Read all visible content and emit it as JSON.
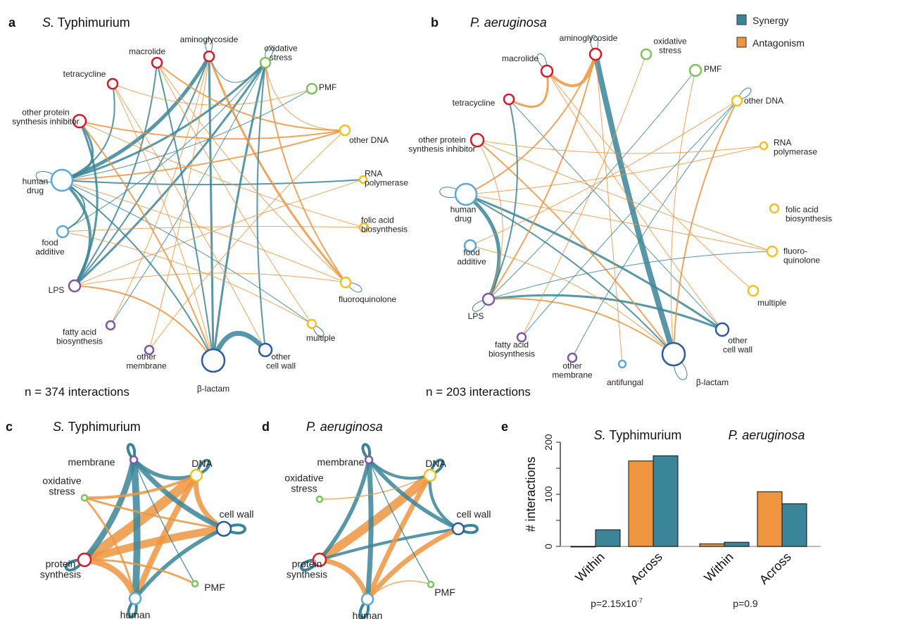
{
  "colors": {
    "synergy": "#3a8598",
    "antagonism": "#ef9540",
    "protein_synthesis": "#d7192a",
    "oxidative": "#7cc35a",
    "dna": "#f2c022",
    "human_food": "#5aa7e0",
    "cell_wall": "#2b5aa8",
    "membrane": "#7e57a8"
  },
  "legend": {
    "synergy": "Synergy",
    "antagonism": "Antagonism"
  },
  "panel_a": {
    "letter": "a",
    "title_italic": "S.",
    "title_rest": " Typhimurium",
    "count": "n = 374 interactions",
    "nodes": [
      {
        "id": "aminoglycoside",
        "label": [
          "aminoglycoside"
        ],
        "cls": "protein_synthesis"
      },
      {
        "id": "macrolide",
        "label": [
          "macrolide"
        ],
        "cls": "protein_synthesis"
      },
      {
        "id": "tetracycline",
        "label": [
          "tetracycline"
        ],
        "cls": "protein_synthesis"
      },
      {
        "id": "other_psi",
        "label": [
          "other protein",
          "synthesis inhibitor"
        ],
        "cls": "protein_synthesis"
      },
      {
        "id": "oxidative",
        "label": [
          "oxidative",
          "stress"
        ],
        "cls": "oxidative"
      },
      {
        "id": "pmf",
        "label": [
          "PMF"
        ],
        "cls": "oxidative"
      },
      {
        "id": "other_dna",
        "label": [
          "other DNA"
        ],
        "cls": "dna"
      },
      {
        "id": "rna",
        "label": [
          "RNA",
          "polymerase"
        ],
        "cls": "dna"
      },
      {
        "id": "folic",
        "label": [
          "folic acid",
          "biosynthesis"
        ],
        "cls": "dna"
      },
      {
        "id": "fluoro",
        "label": [
          "fluoroquinolone"
        ],
        "cls": "dna"
      },
      {
        "id": "multiple",
        "label": [
          "multiple"
        ],
        "cls": "dna"
      },
      {
        "id": "other_cw",
        "label": [
          "other",
          "cell wall"
        ],
        "cls": "cell_wall"
      },
      {
        "id": "blactam",
        "label": [
          "β-lactam"
        ],
        "cls": "cell_wall"
      },
      {
        "id": "other_mem",
        "label": [
          "other",
          "membrane"
        ],
        "cls": "membrane"
      },
      {
        "id": "fatty",
        "label": [
          "fatty acid",
          "biosynthesis"
        ],
        "cls": "membrane"
      },
      {
        "id": "lps",
        "label": [
          "LPS"
        ],
        "cls": "membrane"
      },
      {
        "id": "food",
        "label": [
          "food",
          "additive"
        ],
        "cls": "human_food"
      },
      {
        "id": "human",
        "label": [
          "human",
          "drug"
        ],
        "cls": "human_food"
      }
    ],
    "edges": [
      [
        "human",
        "aminoglycoside",
        "s",
        5
      ],
      [
        "human",
        "oxidative",
        "s",
        3
      ],
      [
        "human",
        "tetracycline",
        "s",
        2
      ],
      [
        "human",
        "other_psi",
        "s",
        3
      ],
      [
        "human",
        "lps",
        "s",
        4
      ],
      [
        "human",
        "food",
        "s",
        2
      ],
      [
        "human",
        "rna",
        "s",
        2
      ],
      [
        "lps",
        "aminoglycoside",
        "s",
        2
      ],
      [
        "lps",
        "oxidative",
        "s",
        3
      ],
      [
        "lps",
        "macrolide",
        "s",
        2
      ],
      [
        "lps",
        "blactam",
        "a",
        2
      ],
      [
        "blactam",
        "other_cw",
        "s",
        7
      ],
      [
        "blactam",
        "aminoglycoside",
        "s",
        3
      ],
      [
        "blactam",
        "oxidative",
        "s",
        3
      ],
      [
        "blactam",
        "macrolide",
        "s",
        2
      ],
      [
        "blactam",
        "human",
        "s",
        2
      ],
      [
        "oxidative",
        "fluoro",
        "a",
        2
      ],
      [
        "oxidative",
        "other_dna",
        "a",
        1
      ],
      [
        "aminoglycoside",
        "fluoro",
        "a",
        3
      ],
      [
        "macrolide",
        "other_dna",
        "a",
        2
      ],
      [
        "other_psi",
        "other_dna",
        "a",
        2
      ],
      [
        "tetracycline",
        "pmf",
        "a",
        1
      ],
      [
        "human",
        "other_dna",
        "a",
        2
      ],
      [
        "human",
        "fluoro",
        "a",
        1
      ],
      [
        "food",
        "folic",
        "a",
        1
      ],
      [
        "food",
        "multiple",
        "a",
        1
      ],
      [
        "fatty",
        "oxidative",
        "s",
        1
      ],
      [
        "other_mem",
        "aminoglycoside",
        "a",
        1
      ],
      [
        "other_mem",
        "other_dna",
        "a",
        1
      ],
      [
        "multiple",
        "macrolide",
        "a",
        1
      ],
      [
        "other_cw",
        "oxidative",
        "s",
        2
      ],
      [
        "other_cw",
        "tetracycline",
        "a",
        1
      ],
      [
        "fluoro",
        "lps",
        "a",
        1
      ],
      [
        "rna",
        "lps",
        "a",
        1
      ],
      [
        "pmf",
        "human",
        "s",
        1
      ],
      [
        "folic",
        "other_psi",
        "a",
        1
      ],
      [
        "aminoglycoside",
        "oxidative",
        "s",
        1
      ],
      [
        "multiple",
        "human",
        "s",
        1
      ],
      [
        "blactam",
        "other_psi",
        "a",
        2
      ],
      [
        "fatty",
        "aminoglycoside",
        "a",
        1
      ],
      [
        "lps",
        "other_psi",
        "s",
        3
      ],
      [
        "food",
        "oxidative",
        "s",
        1
      ],
      [
        "macrolide",
        "fluoro",
        "a",
        1
      ],
      [
        "tetracycline",
        "blactam",
        "a",
        1
      ]
    ]
  },
  "panel_b": {
    "letter": "b",
    "title_italic": "P. aeruginosa",
    "count": "n = 203 interactions",
    "nodes": [
      {
        "id": "aminoglycoside",
        "label": [
          "aminoglycoside"
        ],
        "cls": "protein_synthesis"
      },
      {
        "id": "macrolide",
        "label": [
          "macrolide"
        ],
        "cls": "protein_synthesis"
      },
      {
        "id": "tetracycline",
        "label": [
          "tetracycline"
        ],
        "cls": "protein_synthesis"
      },
      {
        "id": "other_psi",
        "label": [
          "other protein",
          "synthesis inhibitor"
        ],
        "cls": "protein_synthesis"
      },
      {
        "id": "oxidative",
        "label": [
          "oxidative",
          "stress"
        ],
        "cls": "oxidative"
      },
      {
        "id": "pmf",
        "label": [
          "PMF"
        ],
        "cls": "oxidative"
      },
      {
        "id": "other_dna",
        "label": [
          "other DNA"
        ],
        "cls": "dna"
      },
      {
        "id": "rna",
        "label": [
          "RNA",
          "polymerase"
        ],
        "cls": "dna"
      },
      {
        "id": "folic",
        "label": [
          "folic acid",
          "biosynthesis"
        ],
        "cls": "dna"
      },
      {
        "id": "fluoro",
        "label": [
          "fluoro-",
          "quinolone"
        ],
        "cls": "dna"
      },
      {
        "id": "multiple",
        "label": [
          "multiple"
        ],
        "cls": "dna"
      },
      {
        "id": "other_cw",
        "label": [
          "other",
          "cell wall"
        ],
        "cls": "cell_wall"
      },
      {
        "id": "blactam",
        "label": [
          "β-lactam"
        ],
        "cls": "cell_wall"
      },
      {
        "id": "antifungal",
        "label": [
          "antifungal"
        ],
        "cls": "human_food"
      },
      {
        "id": "other_mem",
        "label": [
          "other",
          "membrane"
        ],
        "cls": "membrane"
      },
      {
        "id": "fatty",
        "label": [
          "fatty acid",
          "biosynthesis"
        ],
        "cls": "membrane"
      },
      {
        "id": "lps",
        "label": [
          "LPS"
        ],
        "cls": "membrane"
      },
      {
        "id": "food",
        "label": [
          "food",
          "additive"
        ],
        "cls": "human_food"
      },
      {
        "id": "human",
        "label": [
          "human",
          "drug"
        ],
        "cls": "human_food"
      }
    ],
    "edges": [
      [
        "aminoglycoside",
        "blactam",
        "s",
        8
      ],
      [
        "aminoglycoside",
        "macrolide",
        "a",
        4
      ],
      [
        "macrolide",
        "tetracycline",
        "a",
        3
      ],
      [
        "human",
        "lps",
        "s",
        5
      ],
      [
        "human",
        "other_cw",
        "s",
        3
      ],
      [
        "lps",
        "other_cw",
        "s",
        3
      ],
      [
        "lps",
        "blactam",
        "a",
        2
      ],
      [
        "human",
        "blactam",
        "s",
        2
      ],
      [
        "aminoglycoside",
        "lps",
        "a",
        2
      ],
      [
        "other_psi",
        "blactam",
        "a",
        2
      ],
      [
        "tetracycline",
        "other_cw",
        "s",
        1
      ],
      [
        "other_dna",
        "blactam",
        "a",
        2
      ],
      [
        "human",
        "fluoro",
        "a",
        1
      ],
      [
        "food",
        "other_dna",
        "a",
        1
      ],
      [
        "oxidative",
        "fatty",
        "a",
        1
      ],
      [
        "pmf",
        "lps",
        "s",
        1
      ],
      [
        "macrolide",
        "multiple",
        "a",
        1
      ],
      [
        "human",
        "rna",
        "a",
        1
      ],
      [
        "aminoglycoside",
        "human",
        "a",
        2
      ],
      [
        "other_psi",
        "fluoro",
        "a",
        1
      ],
      [
        "lps",
        "fluoro",
        "s",
        1
      ],
      [
        "other_mem",
        "other_dna",
        "s",
        1
      ],
      [
        "antifungal",
        "aminoglycoside",
        "a",
        1
      ],
      [
        "food",
        "blactam",
        "a",
        1
      ],
      [
        "tetracycline",
        "lps",
        "s",
        2
      ],
      [
        "other_psi",
        "lps",
        "a",
        1
      ],
      [
        "pmf",
        "blactam",
        "a",
        1
      ],
      [
        "macrolide",
        "other_cw",
        "a",
        1
      ],
      [
        "other_dna",
        "fatty",
        "s",
        1
      ],
      [
        "rna",
        "other_psi",
        "a",
        1
      ]
    ]
  },
  "panel_c": {
    "letter": "c",
    "title_italic": "S.",
    "title_rest": " Typhimurium",
    "nodes": [
      {
        "id": "membrane",
        "label": [
          "membrane"
        ],
        "cls": "membrane"
      },
      {
        "id": "dna",
        "label": [
          "DNA"
        ],
        "cls": "dna"
      },
      {
        "id": "cellwall",
        "label": [
          "cell wall"
        ],
        "cls": "cell_wall"
      },
      {
        "id": "pmf",
        "label": [
          "PMF"
        ],
        "cls": "oxidative"
      },
      {
        "id": "human",
        "label": [
          "human"
        ],
        "cls": "human_food"
      },
      {
        "id": "protein",
        "label": [
          "protein",
          "synthesis"
        ],
        "cls": "protein_synthesis"
      },
      {
        "id": "oxidative",
        "label": [
          "oxidative",
          "stress"
        ],
        "cls": "oxidative"
      }
    ],
    "edges": [
      [
        "protein",
        "dna",
        "a",
        10
      ],
      [
        "protein",
        "cellwall",
        "a",
        8
      ],
      [
        "protein",
        "human",
        "a",
        6
      ],
      [
        "protein",
        "membrane",
        "s",
        6
      ],
      [
        "human",
        "dna",
        "a",
        6
      ],
      [
        "human",
        "membrane",
        "s",
        7
      ],
      [
        "human",
        "cellwall",
        "s",
        4
      ],
      [
        "dna",
        "cellwall",
        "a",
        5
      ],
      [
        "membrane",
        "cellwall",
        "s",
        5
      ],
      [
        "membrane",
        "dna",
        "s",
        4
      ],
      [
        "oxidative",
        "dna",
        "a",
        3
      ],
      [
        "oxidative",
        "human",
        "a",
        2
      ],
      [
        "protein",
        "pmf",
        "a",
        2
      ],
      [
        "pmf",
        "membrane",
        "s",
        1
      ],
      [
        "oxidative",
        "cellwall",
        "a",
        2
      ]
    ]
  },
  "panel_d": {
    "letter": "d",
    "title_italic": "P. aeruginosa",
    "nodes": [
      {
        "id": "membrane",
        "label": [
          "membrane"
        ],
        "cls": "membrane"
      },
      {
        "id": "dna",
        "label": [
          "DNA"
        ],
        "cls": "dna"
      },
      {
        "id": "cellwall",
        "label": [
          "cell wall"
        ],
        "cls": "cell_wall"
      },
      {
        "id": "pmf",
        "label": [
          "PMF"
        ],
        "cls": "oxidative"
      },
      {
        "id": "human",
        "label": [
          "human"
        ],
        "cls": "human_food"
      },
      {
        "id": "protein",
        "label": [
          "protein",
          "synthesis"
        ],
        "cls": "protein_synthesis"
      },
      {
        "id": "oxidative",
        "label": [
          "oxidative",
          "stress"
        ],
        "cls": "oxidative"
      }
    ],
    "edges": [
      [
        "protein",
        "dna",
        "a",
        9
      ],
      [
        "protein",
        "cellwall",
        "s",
        3
      ],
      [
        "protein",
        "human",
        "a",
        5
      ],
      [
        "protein",
        "membrane",
        "s",
        4
      ],
      [
        "human",
        "dna",
        "a",
        5
      ],
      [
        "human",
        "membrane",
        "s",
        5
      ],
      [
        "human",
        "cellwall",
        "a",
        5
      ],
      [
        "dna",
        "cellwall",
        "s",
        3
      ],
      [
        "membrane",
        "cellwall",
        "s",
        4
      ],
      [
        "membrane",
        "dna",
        "s",
        3
      ],
      [
        "oxidative",
        "dna",
        "a",
        1
      ],
      [
        "human",
        "pmf",
        "a",
        1
      ],
      [
        "pmf",
        "membrane",
        "s",
        1
      ]
    ]
  },
  "chart_data": {
    "type": "bar",
    "letter": "e",
    "ylabel": "# interactions",
    "ylim": [
      0,
      200
    ],
    "yticks": [
      "0",
      "100",
      "200"
    ],
    "groups": [
      {
        "title_italic": "S.",
        "title_rest": " Typhimurium",
        "categories": [
          "Within",
          "Across"
        ],
        "series": [
          {
            "name": "Antagonism",
            "values": [
              0,
              164
            ]
          },
          {
            "name": "Synergy",
            "values": [
              32,
              174
            ]
          }
        ],
        "pvalue": "p=2.15x10",
        "pvalue_exp": "-7"
      },
      {
        "title_italic": "P. aeruginosa",
        "title_rest": "",
        "categories": [
          "Within",
          "Across"
        ],
        "series": [
          {
            "name": "Antagonism",
            "values": [
              5,
              105
            ]
          },
          {
            "name": "Synergy",
            "values": [
              8,
              82
            ]
          }
        ],
        "pvalue": "p=0.9",
        "pvalue_exp": ""
      }
    ]
  }
}
